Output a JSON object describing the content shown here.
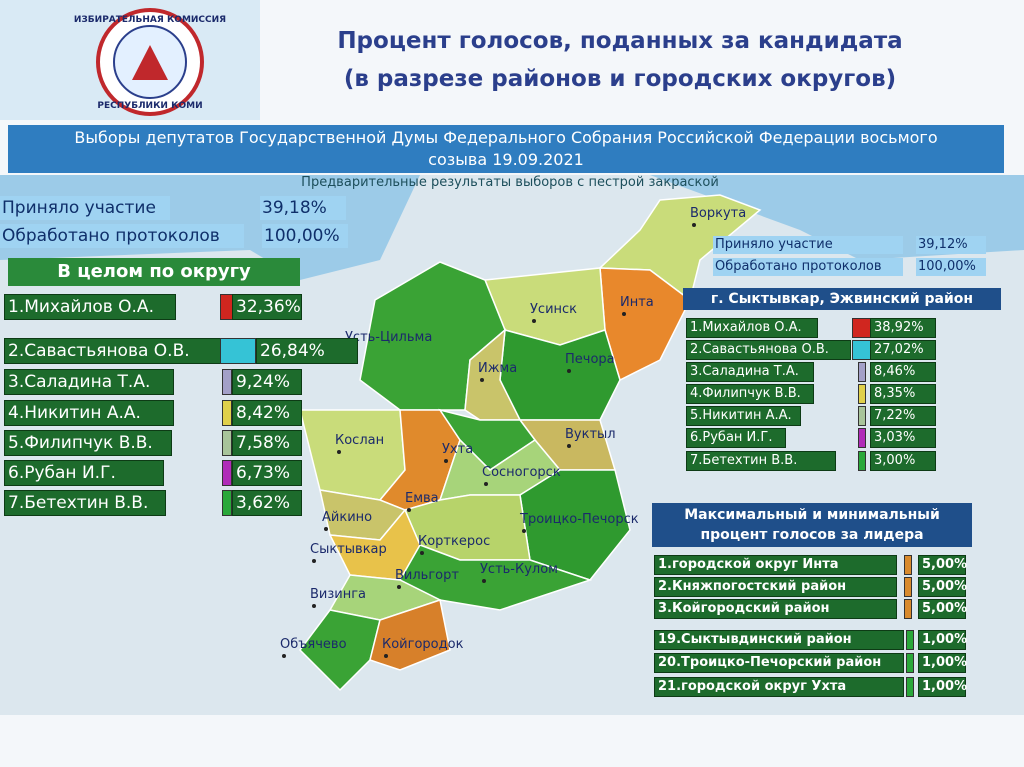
{
  "logo": {
    "top": "ИЗБИРАТЕЛЬНАЯ КОМИССИЯ",
    "bottom": "РЕСПУБЛИКИ КОМИ"
  },
  "header": {
    "title_lines": [
      "Процент голосов, поданных за кандидата",
      "(в разрезе районов и городских округов)"
    ]
  },
  "banner": {
    "lines": [
      "Выборы депутатов Государственной Думы Федерального Собрания Российской Федерации восьмого",
      "созыва 19.09.2021"
    ]
  },
  "subtitle": "Предварительные результаты выборов с пестрой закраской",
  "district_summary": {
    "stats": [
      {
        "label": "Приняло участие",
        "value": "39,18%"
      },
      {
        "label": "Обработано протоколов",
        "value": "100,00%"
      }
    ],
    "heading": "В целом по округу",
    "candidates": [
      {
        "name": "1.Михайлов О.А.",
        "value": "32,36%"
      },
      {
        "name": "2.Савастьянова О.В.",
        "value": "26,84%"
      },
      {
        "name": "3.Саладина Т.А.",
        "value": "9,24%"
      },
      {
        "name": "4.Никитин А.А.",
        "value": "8,42%"
      },
      {
        "name": "5.Филипчук В.В.",
        "value": "7,58%"
      },
      {
        "name": "6.Рубан И.Г.",
        "value": "6,73%"
      },
      {
        "name": "7.Бетехтин В.В.",
        "value": "3,62%"
      }
    ]
  },
  "city_summary": {
    "stats": [
      {
        "label": "Приняло участие",
        "value": "39,12%"
      },
      {
        "label": "Обработано протоколов",
        "value": "100,00%"
      }
    ],
    "heading": "г. Сыктывкар, Эжвинский район",
    "candidates": [
      {
        "name": "1.Михайлов О.А.",
        "value": "38,92%"
      },
      {
        "name": "2.Савастьянова О.В.",
        "value": "27,02%"
      },
      {
        "name": "3.Саладина Т.А.",
        "value": "8,46%"
      },
      {
        "name": "4.Филипчук В.В.",
        "value": "8,35%"
      },
      {
        "name": "5.Никитин А.А.",
        "value": "7,22%"
      },
      {
        "name": "6.Рубан И.Г.",
        "value": "3,03%"
      },
      {
        "name": "7.Бетехтин В.В.",
        "value": "3,00%"
      }
    ]
  },
  "extremes": {
    "heading_lines": [
      "Максимальный и минимальный",
      "процент голосов за лидера"
    ],
    "max": [
      {
        "name": "1.городской округ Инта",
        "value": "5,00%"
      },
      {
        "name": "2.Княжпогостский район",
        "value": "5,00%"
      },
      {
        "name": "3.Койгородский район",
        "value": "5,00%"
      }
    ],
    "min": [
      {
        "name": "19.Сыктывдинский район",
        "value": "1,00%"
      },
      {
        "name": "20.Троицко-Печорский район",
        "value": "1,00%"
      },
      {
        "name": "21.городской округ Ухта",
        "value": "1,00%"
      }
    ]
  },
  "map": {
    "places": [
      "Воркута",
      "Инта",
      "Усинск",
      "Усть-Цильма",
      "Печора",
      "Ижма",
      "Вуктыл",
      "Кослан",
      "Ухта",
      "Сосногорск",
      "Емва",
      "Айкино",
      "Троицко-Печорск",
      "Корткерос",
      "Сыктывкар",
      "Вильгорт",
      "Усть-Кулом",
      "Визинга",
      "Объячево",
      "Койгородок"
    ]
  }
}
